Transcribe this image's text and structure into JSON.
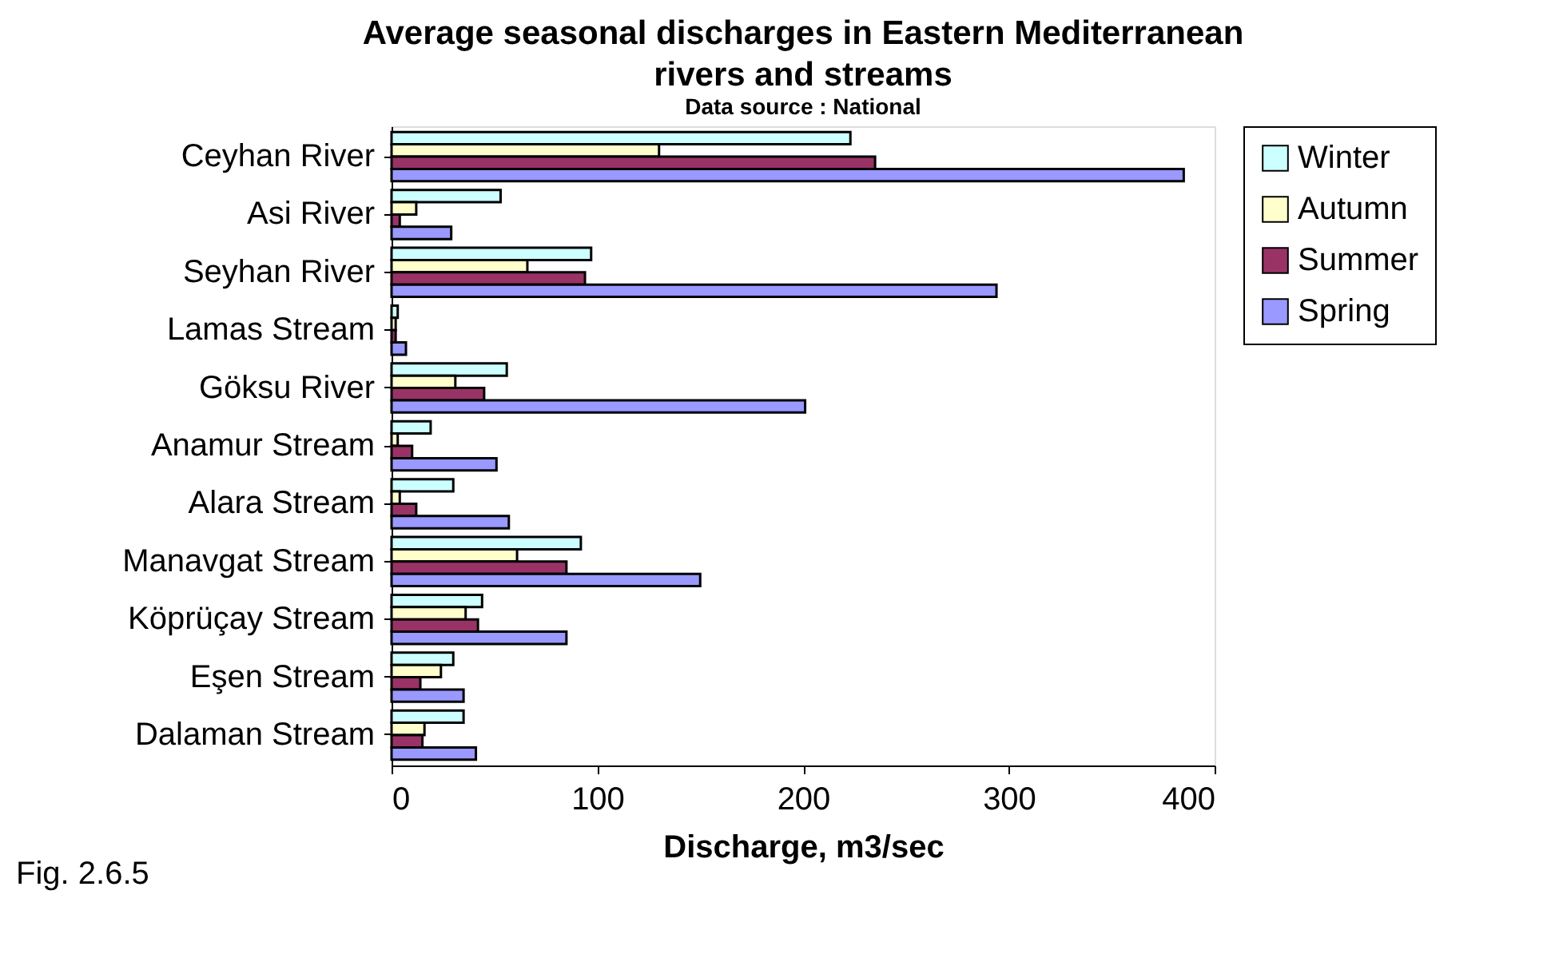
{
  "chart_data": {
    "type": "bar",
    "orientation": "horizontal",
    "title": "Average seasonal discharges in Eastern Mediterranean rivers and streams",
    "subtitle": "Data source : National",
    "xlabel": "Discharge, m3/sec",
    "categories": [
      "Ceyhan River",
      "Asi River",
      "Seyhan River",
      "Lamas Stream",
      "Göksu River",
      "Anamur Stream",
      "Alara Stream",
      "Manavgat Stream",
      "Köprüçay Stream",
      "Eşen Stream",
      "Dalaman Stream"
    ],
    "series": [
      {
        "name": "Winter",
        "color": "#ccffff",
        "values": [
          223,
          53,
          97,
          3,
          56,
          19,
          30,
          92,
          44,
          30,
          35
        ]
      },
      {
        "name": "Autumn",
        "color": "#ffffcc",
        "values": [
          130,
          12,
          66,
          2,
          31,
          3,
          4,
          61,
          36,
          24,
          16
        ]
      },
      {
        "name": "Summer",
        "color": "#993366",
        "values": [
          235,
          4,
          94,
          2,
          45,
          10,
          12,
          85,
          42,
          14,
          15
        ]
      },
      {
        "name": "Spring",
        "color": "#9999ff",
        "values": [
          385,
          29,
          294,
          7,
          201,
          51,
          57,
          150,
          85,
          35,
          41
        ]
      }
    ],
    "xlim": [
      0,
      400
    ],
    "xticks": [
      0,
      100,
      200,
      300,
      400
    ],
    "grid": false,
    "legend": "right",
    "annotations": [
      "Fig. 2.6.5"
    ]
  }
}
